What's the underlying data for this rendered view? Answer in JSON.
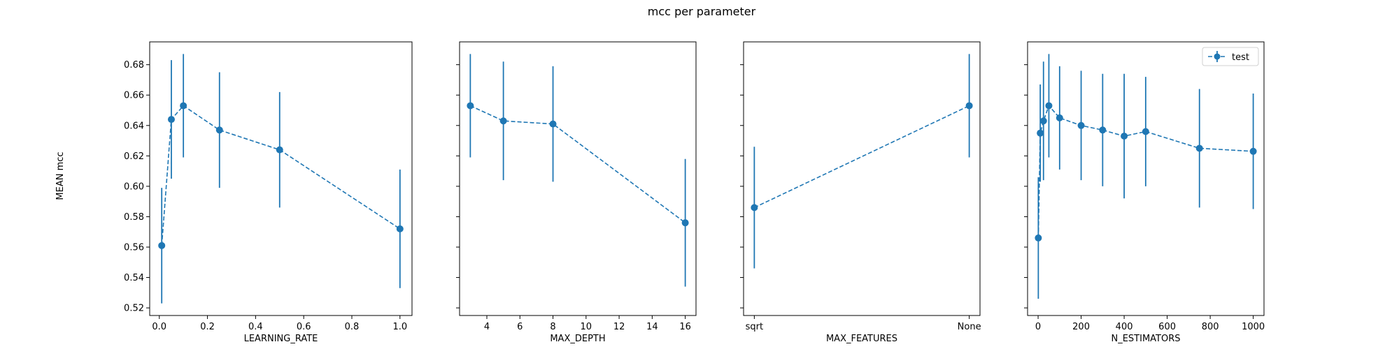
{
  "figure": {
    "title": "mcc per parameter",
    "ylabel": "MEAN mcc",
    "legend_label": "test"
  },
  "chart_data": [
    {
      "type": "line",
      "xlabel": "LEARNING_RATE",
      "ylabel": "MEAN mcc",
      "x": [
        0.01,
        0.05,
        0.1,
        0.25,
        0.5,
        1.0
      ],
      "series": [
        {
          "values": [
            0.561,
            0.644,
            0.653,
            0.637,
            0.624,
            0.572
          ],
          "err": [
            0.038,
            0.039,
            0.034,
            0.038,
            0.038,
            0.039
          ]
        }
      ],
      "xlim": [
        -0.04,
        1.05
      ],
      "ylim": [
        0.515,
        0.695
      ],
      "xticks": [
        0.0,
        0.2,
        0.4,
        0.6,
        0.8,
        1.0
      ],
      "xtick_labels": [
        "0.0",
        "0.2",
        "0.4",
        "0.6",
        "0.8",
        "1.0"
      ],
      "yticks": [
        0.52,
        0.54,
        0.56,
        0.58,
        0.6,
        0.62,
        0.64,
        0.66,
        0.68
      ],
      "ytick_labels": [
        "0.52",
        "0.54",
        "0.56",
        "0.58",
        "0.60",
        "0.62",
        "0.64",
        "0.66",
        "0.68"
      ]
    },
    {
      "type": "line",
      "xlabel": "MAX_DEPTH",
      "x": [
        3,
        5,
        8,
        16
      ],
      "series": [
        {
          "values": [
            0.653,
            0.643,
            0.641,
            0.576
          ],
          "err": [
            0.034,
            0.039,
            0.038,
            0.042
          ]
        }
      ],
      "xlim": [
        2.35,
        16.65
      ],
      "ylim": [
        0.515,
        0.695
      ],
      "xticks": [
        4,
        6,
        8,
        10,
        12,
        14,
        16
      ],
      "xtick_labels": [
        "4",
        "6",
        "8",
        "10",
        "12",
        "14",
        "16"
      ],
      "yticks": [
        0.52,
        0.54,
        0.56,
        0.58,
        0.6,
        0.62,
        0.64,
        0.66,
        0.68
      ]
    },
    {
      "type": "line",
      "xlabel": "MAX_FEATURES",
      "categories": [
        "sqrt",
        "None"
      ],
      "x": [
        0,
        1
      ],
      "series": [
        {
          "values": [
            0.586,
            0.653
          ],
          "err": [
            0.04,
            0.034
          ]
        }
      ],
      "xlim": [
        -0.05,
        1.05
      ],
      "ylim": [
        0.515,
        0.695
      ],
      "xticks": [
        0,
        1
      ],
      "xtick_labels": [
        "sqrt",
        "None"
      ],
      "yticks": [
        0.52,
        0.54,
        0.56,
        0.58,
        0.6,
        0.62,
        0.64,
        0.66,
        0.68
      ]
    },
    {
      "type": "line",
      "xlabel": "N_ESTIMATORS",
      "legend": "top-right",
      "x": [
        1,
        10,
        25,
        50,
        100,
        200,
        300,
        400,
        500,
        750,
        1000
      ],
      "series": [
        {
          "name": "test",
          "values": [
            0.566,
            0.635,
            0.643,
            0.653,
            0.645,
            0.64,
            0.637,
            0.633,
            0.636,
            0.625,
            0.623
          ],
          "err": [
            0.04,
            0.032,
            0.039,
            0.034,
            0.034,
            0.036,
            0.037,
            0.041,
            0.036,
            0.039,
            0.038
          ]
        }
      ],
      "xlim": [
        -49,
        1050
      ],
      "ylim": [
        0.515,
        0.695
      ],
      "xticks": [
        0,
        200,
        400,
        600,
        800,
        1000
      ],
      "xtick_labels": [
        "0",
        "200",
        "400",
        "600",
        "800",
        "1000"
      ],
      "yticks": [
        0.52,
        0.54,
        0.56,
        0.58,
        0.6,
        0.62,
        0.64,
        0.66,
        0.68
      ]
    }
  ]
}
